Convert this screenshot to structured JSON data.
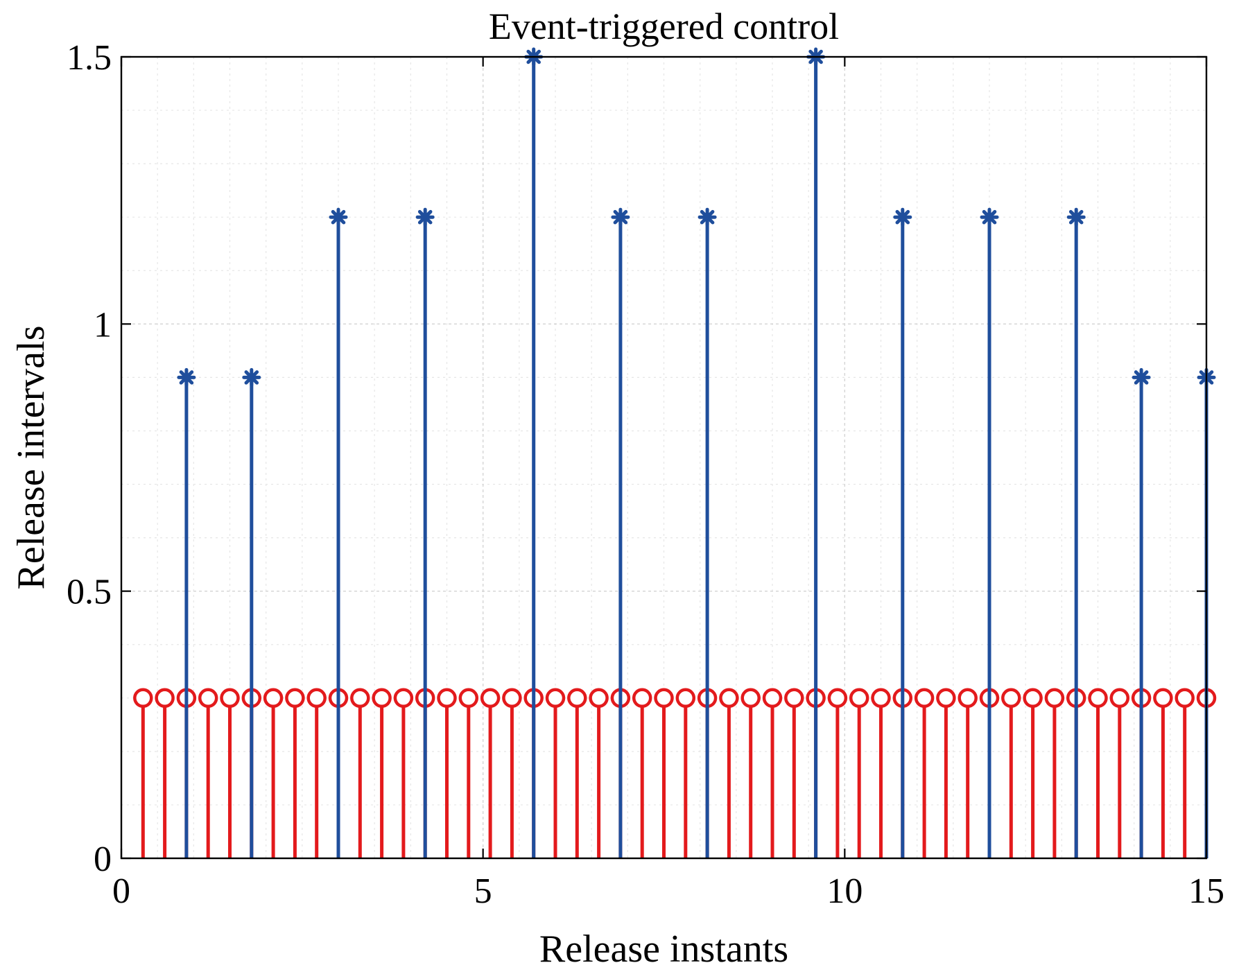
{
  "chart_data": {
    "type": "stem",
    "title": "Event-triggered control",
    "xlabel": "Release instants",
    "ylabel": "Release intervals",
    "xlim": [
      0,
      15
    ],
    "ylim": [
      0,
      1.5
    ],
    "x_ticks": [
      0,
      5,
      10,
      15
    ],
    "x_tick_labels": [
      "0",
      "5",
      "10",
      "15"
    ],
    "y_ticks": [
      0,
      0.5,
      1,
      1.5
    ],
    "y_tick_labels": [
      "0",
      "0.5",
      "1",
      "1.5"
    ],
    "grid": true,
    "minor_grid": true,
    "series": [
      {
        "marker": "circle",
        "color": "#e31a1c",
        "x": [
          0.3,
          0.6,
          0.9,
          1.2,
          1.5,
          1.8,
          2.1,
          2.4,
          2.7,
          3.0,
          3.3,
          3.6,
          3.9,
          4.2,
          4.5,
          4.8,
          5.1,
          5.4,
          5.7,
          6.0,
          6.3,
          6.6,
          6.9,
          7.2,
          7.5,
          7.8,
          8.1,
          8.4,
          8.7,
          9.0,
          9.3,
          9.6,
          9.9,
          10.2,
          10.5,
          10.8,
          11.1,
          11.4,
          11.7,
          12.0,
          12.3,
          12.6,
          12.9,
          13.2,
          13.5,
          13.8,
          14.1,
          14.4,
          14.7,
          15.0
        ],
        "y": [
          0.3,
          0.3,
          0.3,
          0.3,
          0.3,
          0.3,
          0.3,
          0.3,
          0.3,
          0.3,
          0.3,
          0.3,
          0.3,
          0.3,
          0.3,
          0.3,
          0.3,
          0.3,
          0.3,
          0.3,
          0.3,
          0.3,
          0.3,
          0.3,
          0.3,
          0.3,
          0.3,
          0.3,
          0.3,
          0.3,
          0.3,
          0.3,
          0.3,
          0.3,
          0.3,
          0.3,
          0.3,
          0.3,
          0.3,
          0.3,
          0.3,
          0.3,
          0.3,
          0.3,
          0.3,
          0.3,
          0.3,
          0.3,
          0.3,
          0.3
        ]
      },
      {
        "marker": "asterisk",
        "color": "#1f4e9c",
        "x": [
          0.9,
          1.8,
          3.0,
          4.2,
          5.7,
          6.9,
          8.1,
          9.6,
          10.8,
          12.0,
          13.2,
          14.1,
          15.0
        ],
        "y": [
          0.9,
          0.9,
          1.2,
          1.2,
          1.5,
          1.2,
          1.2,
          1.5,
          1.2,
          1.2,
          1.2,
          0.9,
          0.9
        ]
      }
    ]
  }
}
